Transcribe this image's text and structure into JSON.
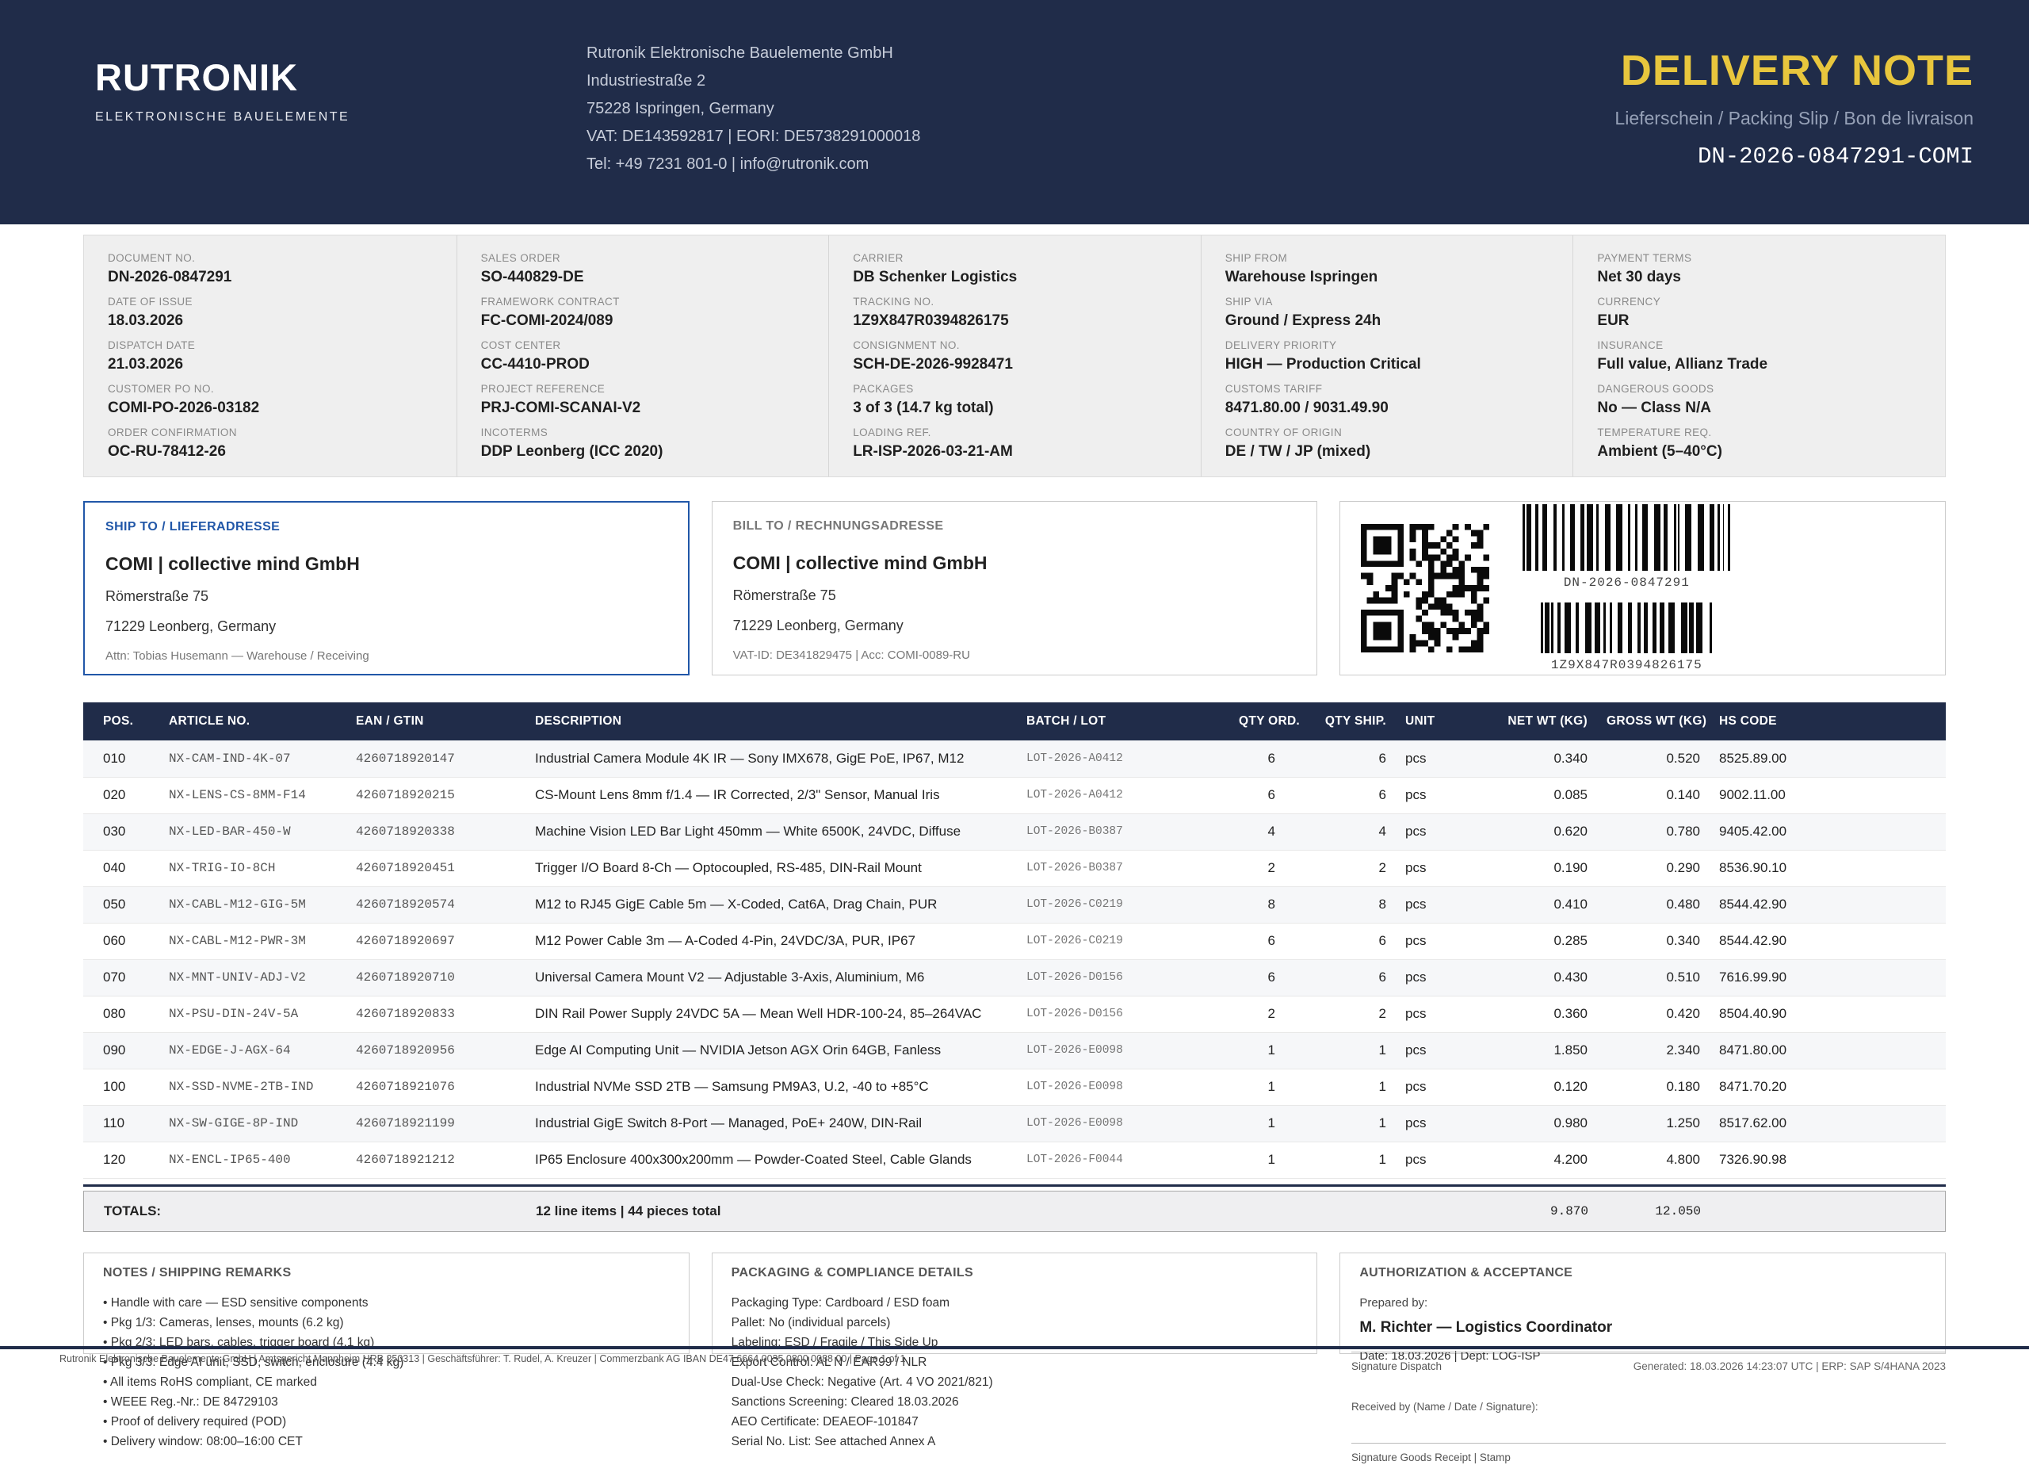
{
  "colors": {
    "navy": "#202c49",
    "yellow": "#e8c63d",
    "blue": "#2157a8"
  },
  "header": {
    "logo_title": "RUTRONIK",
    "logo_subtitle": "ELEKTRONISCHE BAUELEMENTE",
    "company_lines": [
      "Rutronik Elektronische Bauelemente GmbH",
      "Industriestraße 2",
      "75228 Ispringen, Germany",
      "VAT: DE143592817  |  EORI: DE5738291000018",
      "Tel: +49 7231 801-0  |  info@rutronik.com"
    ],
    "doc_title": "DELIVERY NOTE",
    "doc_subtitle": "Lieferschein / Packing Slip / Bon de livraison",
    "doc_number": "DN-2026-0847291-COMI"
  },
  "info_grid": {
    "columns": [
      [
        {
          "label": "DOCUMENT NO.",
          "value": "DN-2026-0847291"
        },
        {
          "label": "DATE OF ISSUE",
          "value": "18.03.2026"
        },
        {
          "label": "DISPATCH DATE",
          "value": "21.03.2026"
        },
        {
          "label": "CUSTOMER PO NO.",
          "value": "COMI-PO-2026-03182"
        },
        {
          "label": "ORDER CONFIRMATION",
          "value": "OC-RU-78412-26"
        }
      ],
      [
        {
          "label": "SALES ORDER",
          "value": "SO-440829-DE"
        },
        {
          "label": "FRAMEWORK CONTRACT",
          "value": "FC-COMI-2024/089"
        },
        {
          "label": "COST CENTER",
          "value": "CC-4410-PROD"
        },
        {
          "label": "PROJECT REFERENCE",
          "value": "PRJ-COMI-SCANAI-V2"
        },
        {
          "label": "INCOTERMS",
          "value": "DDP Leonberg (ICC 2020)"
        }
      ],
      [
        {
          "label": "CARRIER",
          "value": "DB Schenker Logistics"
        },
        {
          "label": "TRACKING NO.",
          "value": "1Z9X847R0394826175"
        },
        {
          "label": "CONSIGNMENT NO.",
          "value": "SCH-DE-2026-9928471"
        },
        {
          "label": "PACKAGES",
          "value": "3 of 3 (14.7 kg total)"
        },
        {
          "label": "LOADING REF.",
          "value": "LR-ISP-2026-03-21-AM"
        }
      ],
      [
        {
          "label": "SHIP FROM",
          "value": "Warehouse Ispringen"
        },
        {
          "label": "SHIP VIA",
          "value": "Ground / Express 24h"
        },
        {
          "label": "DELIVERY PRIORITY",
          "value": "HIGH — Production Critical"
        },
        {
          "label": "CUSTOMS TARIFF",
          "value": "8471.80.00 / 9031.49.90"
        },
        {
          "label": "COUNTRY OF ORIGIN",
          "value": "DE / TW / JP (mixed)"
        }
      ],
      [
        {
          "label": "PAYMENT TERMS",
          "value": "Net 30 days"
        },
        {
          "label": "CURRENCY",
          "value": "EUR"
        },
        {
          "label": "INSURANCE",
          "value": "Full value, Allianz Trade"
        },
        {
          "label": "DANGEROUS GOODS",
          "value": "No — Class N/A"
        },
        {
          "label": "TEMPERATURE REQ.",
          "value": "Ambient (5–40°C)"
        }
      ]
    ]
  },
  "addresses": {
    "ship_to": {
      "title": "SHIP TO / LIEFERADRESSE",
      "company": "COMI | collective mind GmbH",
      "line1": "Römerstraße 75",
      "line2": "71229 Leonberg, Germany",
      "meta": "Attn: Tobias Husemann — Warehouse / Receiving"
    },
    "bill_to": {
      "title": "BILL TO / RECHNUNGSADRESSE",
      "company": "COMI | collective mind GmbH",
      "line1": "Römerstraße 75",
      "line2": "71229 Leonberg, Germany",
      "meta": "VAT-ID: DE341829475  |  Acc: COMI-0089-RU"
    },
    "codes": {
      "barcode1_label": "DN-2026-0847291",
      "barcode2_label": "1Z9X847R0394826175"
    }
  },
  "table": {
    "headers": [
      "POS.",
      "ARTICLE NO.",
      "EAN / GTIN",
      "DESCRIPTION",
      "BATCH / LOT",
      "QTY ORD.",
      "QTY SHIP.",
      "UNIT",
      "NET WT (KG)",
      "GROSS WT (KG)",
      "HS CODE"
    ],
    "rows": [
      [
        "010",
        "NX-CAM-IND-4K-07",
        "4260718920147",
        "Industrial Camera Module 4K IR — Sony IMX678, GigE PoE, IP67, M12",
        "LOT-2026-A0412",
        "6",
        "6",
        "pcs",
        "0.340",
        "0.520",
        "8525.89.00"
      ],
      [
        "020",
        "NX-LENS-CS-8MM-F14",
        "4260718920215",
        "CS-Mount Lens 8mm f/1.4 — IR Corrected, 2/3\" Sensor, Manual Iris",
        "LOT-2026-A0412",
        "6",
        "6",
        "pcs",
        "0.085",
        "0.140",
        "9002.11.00"
      ],
      [
        "030",
        "NX-LED-BAR-450-W",
        "4260718920338",
        "Machine Vision LED Bar Light 450mm — White 6500K, 24VDC, Diffuse",
        "LOT-2026-B0387",
        "4",
        "4",
        "pcs",
        "0.620",
        "0.780",
        "9405.42.00"
      ],
      [
        "040",
        "NX-TRIG-IO-8CH",
        "4260718920451",
        "Trigger I/O Board 8-Ch — Optocoupled, RS-485, DIN-Rail Mount",
        "LOT-2026-B0387",
        "2",
        "2",
        "pcs",
        "0.190",
        "0.290",
        "8536.90.10"
      ],
      [
        "050",
        "NX-CABL-M12-GIG-5M",
        "4260718920574",
        "M12 to RJ45 GigE Cable 5m — X-Coded, Cat6A, Drag Chain, PUR",
        "LOT-2026-C0219",
        "8",
        "8",
        "pcs",
        "0.410",
        "0.480",
        "8544.42.90"
      ],
      [
        "060",
        "NX-CABL-M12-PWR-3M",
        "4260718920697",
        "M12 Power Cable 3m — A-Coded 4-Pin, 24VDC/3A, PUR, IP67",
        "LOT-2026-C0219",
        "6",
        "6",
        "pcs",
        "0.285",
        "0.340",
        "8544.42.90"
      ],
      [
        "070",
        "NX-MNT-UNIV-ADJ-V2",
        "4260718920710",
        "Universal Camera Mount V2 — Adjustable 3-Axis, Aluminium, M6",
        "LOT-2026-D0156",
        "6",
        "6",
        "pcs",
        "0.430",
        "0.510",
        "7616.99.90"
      ],
      [
        "080",
        "NX-PSU-DIN-24V-5A",
        "4260718920833",
        "DIN Rail Power Supply 24VDC 5A — Mean Well HDR-100-24, 85–264VAC",
        "LOT-2026-D0156",
        "2",
        "2",
        "pcs",
        "0.360",
        "0.420",
        "8504.40.90"
      ],
      [
        "090",
        "NX-EDGE-J-AGX-64",
        "4260718920956",
        "Edge AI Computing Unit — NVIDIA Jetson AGX Orin 64GB, Fanless",
        "LOT-2026-E0098",
        "1",
        "1",
        "pcs",
        "1.850",
        "2.340",
        "8471.80.00"
      ],
      [
        "100",
        "NX-SSD-NVME-2TB-IND",
        "4260718921076",
        "Industrial NVMe SSD 2TB — Samsung PM9A3, U.2, -40 to +85°C",
        "LOT-2026-E0098",
        "1",
        "1",
        "pcs",
        "0.120",
        "0.180",
        "8471.70.20"
      ],
      [
        "110",
        "NX-SW-GIGE-8P-IND",
        "4260718921199",
        "Industrial GigE Switch 8-Port — Managed, PoE+ 240W, DIN-Rail",
        "LOT-2026-E0098",
        "1",
        "1",
        "pcs",
        "0.980",
        "1.250",
        "8517.62.00"
      ],
      [
        "120",
        "NX-ENCL-IP65-400",
        "4260718921212",
        "IP65 Enclosure 400x300x200mm — Powder-Coated Steel, Cable Glands",
        "LOT-2026-F0044",
        "1",
        "1",
        "pcs",
        "4.200",
        "4.800",
        "7326.90.98"
      ]
    ],
    "totals": {
      "label": "TOTALS:",
      "summary": "12 line items  |  44 pieces total",
      "net": "9.870",
      "gross": "12.050"
    }
  },
  "notes": {
    "title": "NOTES / SHIPPING REMARKS",
    "items": [
      "• Handle with care — ESD sensitive components",
      "• Pkg 1/3: Cameras, lenses, mounts (6.2 kg)",
      "• Pkg 2/3: LED bars, cables, trigger board (4.1 kg)",
      "• Pkg 3/3: Edge AI unit, SSD, switch, enclosure (4.4 kg)",
      "• All items RoHS compliant, CE marked",
      "• WEEE Reg.-Nr.: DE 84729103",
      "• Proof of delivery required (POD)",
      "• Delivery window: 08:00–16:00 CET"
    ]
  },
  "packaging": {
    "title": "PACKAGING & COMPLIANCE DETAILS",
    "items": [
      "Packaging Type:  Cardboard / ESD foam",
      "Pallet:  No (individual parcels)",
      "Labeling:  ESD / Fragile / This Side Up",
      "Export Control:  AL N / EAR99 / NLR",
      "Dual-Use Check:  Negative (Art. 4 VO 2021/821)",
      "Sanctions Screening:  Cleared 18.03.2026",
      "AEO Certificate:  DEAEOF-101847",
      "Serial No. List:  See attached Annex A"
    ]
  },
  "authorization": {
    "title": "AUTHORIZATION & ACCEPTANCE",
    "prepared_label": "Prepared by:",
    "prepared_name": "M. Richter — Logistics Coordinator",
    "meta": "Date: 18.03.2026  |  Dept: LOG-ISP"
  },
  "signatures": {
    "dispatch": "Signature Dispatch",
    "generated": "Generated: 18.03.2026 14:23:07 UTC  |  ERP: SAP S/4HANA 2023",
    "received": "Received by (Name / Date / Signature):",
    "goods": "Signature Goods Receipt  |  Stamp"
  },
  "footer": {
    "legal": "Rutronik Elektronische Bauelemente GmbH  |  Amtsgericht Mannheim HRB 250313  |  Geschäftsführer: T. Rudel, A. Kreuzer  |  Commerzbank AG IBAN DE47 6664 0035 0800 0088 00  |  Page 1 of 1"
  }
}
